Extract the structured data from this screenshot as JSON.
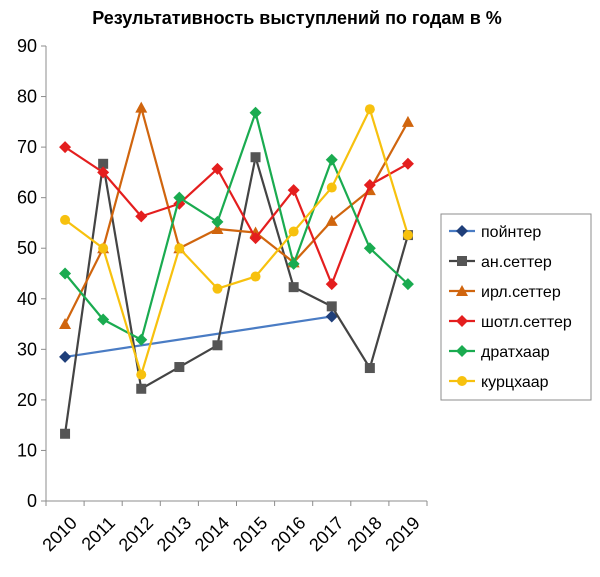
{
  "chart_data": {
    "type": "line",
    "title": "Результативность выступлений по годам в %",
    "xlabel": "",
    "ylabel": "",
    "ylim": [
      0,
      90
    ],
    "ytick_step": 10,
    "grid": false,
    "legend_position": "right",
    "categories": [
      "2010",
      "2011",
      "2012",
      "2013",
      "2014",
      "2015",
      "2016",
      "2017",
      "2018",
      "2019"
    ],
    "series": [
      {
        "name": "пойнтер",
        "color": "#1f3f7a",
        "line_color": "#4a7cc4",
        "marker": "diamond",
        "points": [
          [
            0,
            28.5
          ],
          [
            7,
            36.5
          ]
        ]
      },
      {
        "name": "ан.сеттер",
        "color": "#555555",
        "line_color": "#444444",
        "marker": "square",
        "points": [
          [
            0,
            13.3
          ],
          [
            1,
            66.7
          ],
          [
            2,
            22.2
          ],
          [
            3,
            26.5
          ],
          [
            4,
            30.8
          ],
          [
            5,
            68.0
          ],
          [
            6,
            42.3
          ],
          [
            7,
            38.5
          ],
          [
            8,
            26.3
          ],
          [
            9,
            52.6
          ]
        ]
      },
      {
        "name": "ирл.сеттер",
        "color": "#d0650e",
        "line_color": "#d0650e",
        "marker": "triangle",
        "points": [
          [
            0,
            35.0
          ],
          [
            1,
            50.0
          ],
          [
            2,
            77.8
          ],
          [
            3,
            50.0
          ],
          [
            4,
            53.8
          ],
          [
            5,
            53.1
          ],
          [
            6,
            47.2
          ],
          [
            7,
            55.4
          ],
          [
            8,
            61.5
          ],
          [
            9,
            75.0
          ]
        ]
      },
      {
        "name": "шотл.сеттер",
        "color": "#e41e1e",
        "line_color": "#e41e1e",
        "marker": "diamond",
        "points": [
          [
            0,
            70.0
          ],
          [
            1,
            65.0
          ],
          [
            2,
            56.3
          ],
          [
            3,
            58.8
          ],
          [
            4,
            65.7
          ],
          [
            5,
            52.0
          ],
          [
            6,
            61.5
          ],
          [
            7,
            42.9
          ],
          [
            8,
            62.5
          ],
          [
            9,
            66.7
          ]
        ]
      },
      {
        "name": "дратхаар",
        "color": "#1aab50",
        "line_color": "#1aab50",
        "marker": "diamond",
        "points": [
          [
            0,
            45.0
          ],
          [
            1,
            35.9
          ],
          [
            2,
            31.9
          ],
          [
            3,
            60.0
          ],
          [
            4,
            55.2
          ],
          [
            5,
            76.8
          ],
          [
            6,
            46.9
          ],
          [
            7,
            67.5
          ],
          [
            8,
            50.0
          ],
          [
            9,
            42.9
          ]
        ]
      },
      {
        "name": "курцхаар",
        "color": "#f7c10e",
        "line_color": "#f7c10e",
        "marker": "circle",
        "points": [
          [
            0,
            55.6
          ],
          [
            1,
            50.0
          ],
          [
            2,
            25.0
          ],
          [
            3,
            50.0
          ],
          [
            4,
            42.0
          ],
          [
            5,
            44.4
          ],
          [
            6,
            53.3
          ],
          [
            7,
            62.0
          ],
          [
            8,
            77.5
          ],
          [
            9,
            52.6
          ]
        ]
      }
    ]
  }
}
